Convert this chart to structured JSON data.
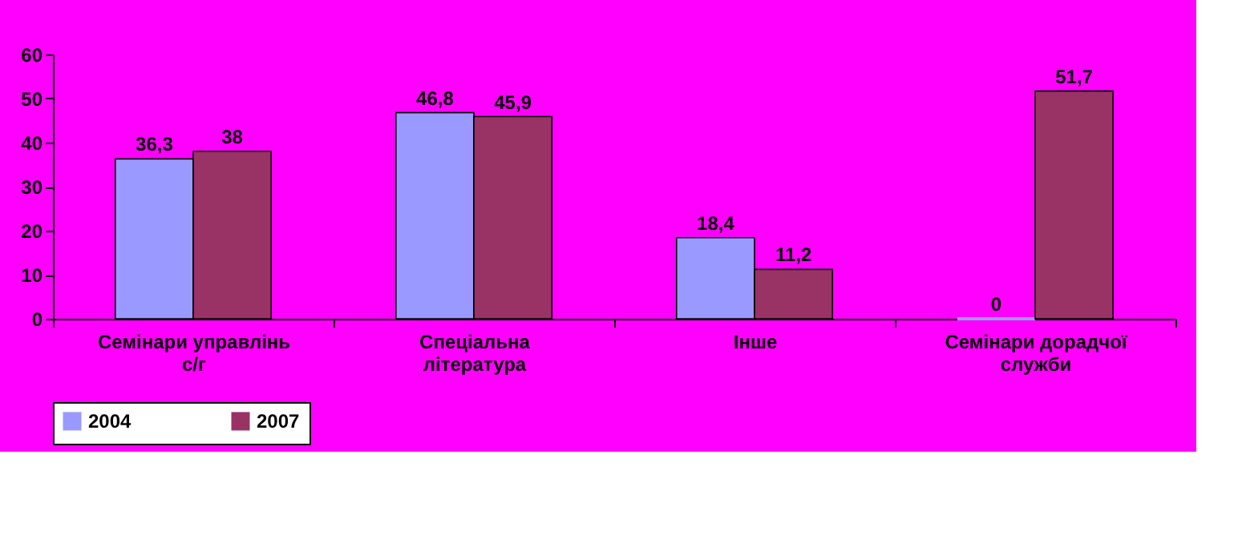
{
  "chart_data": {
    "type": "bar",
    "categories": [
      "Семінари управлінь с/г",
      "Спеціальна література",
      "Інше",
      "Семінари дорадчої служби"
    ],
    "series": [
      {
        "name": "2004",
        "color": "#9999ff",
        "values": [
          36.3,
          46.8,
          18.4,
          0
        ],
        "value_labels": [
          "36,3",
          "46,8",
          "18,4",
          "0"
        ]
      },
      {
        "name": "2007",
        "color": "#993366",
        "values": [
          38,
          45.9,
          11.2,
          51.7
        ],
        "value_labels": [
          "38",
          "45,9",
          "11,2",
          "51,7"
        ]
      }
    ],
    "ylim": [
      0,
      60
    ],
    "yticks": [
      0,
      10,
      20,
      30,
      40,
      50,
      60
    ],
    "grid": false,
    "legend": "bottom"
  }
}
